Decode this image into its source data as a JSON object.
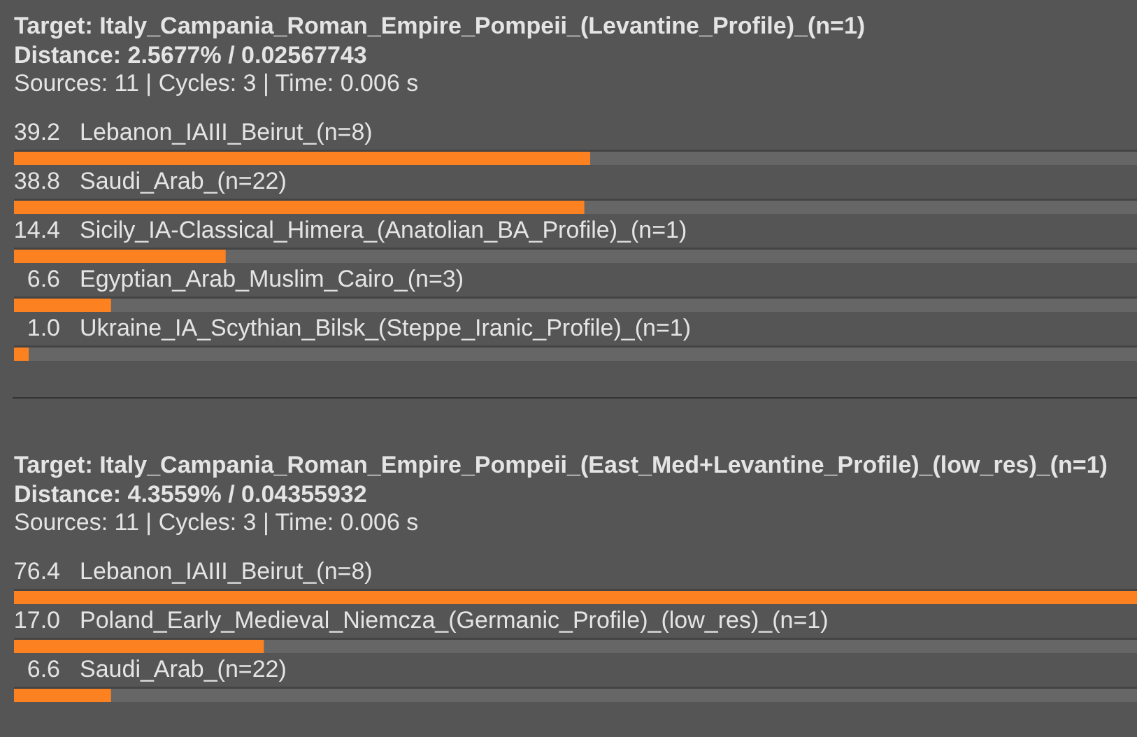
{
  "chart_data": [
    {
      "type": "bar",
      "orientation": "horizontal",
      "title": "Target: Italy_Campania_Roman_Empire_Pompeii_(Levantine_Profile)_(n=1)",
      "subtitle": "Distance: 2.5677% / 0.02567743",
      "annotations": [
        "Sources: 11 | Cycles: 3 | Time: 0.006 s"
      ],
      "categories": [
        "Lebanon_IAIII_Beirut_(n=8)",
        "Saudi_Arab_(n=22)",
        "Sicily_IA-Classical_Himera_(Anatolian_BA_Profile)_(n=1)",
        "Egyptian_Arab_Muslim_Cairo_(n=3)",
        "Ukraine_IA_Scythian_Bilsk_(Steppe_Iranic_Profile)_(n=1)"
      ],
      "values": [
        39.2,
        38.8,
        14.4,
        6.6,
        1.0
      ],
      "value_labels": [
        "39.2",
        "38.8",
        "14.4",
        "6.6",
        "1.0"
      ],
      "color": "#fc8221"
    },
    {
      "type": "bar",
      "orientation": "horizontal",
      "title": "Target: Italy_Campania_Roman_Empire_Pompeii_(East_Med+Levantine_Profile)_(low_res)_(n=1)",
      "subtitle": "Distance: 4.3559% / 0.04355932",
      "annotations": [
        "Sources: 11 | Cycles: 3 | Time: 0.006 s"
      ],
      "categories": [
        "Lebanon_IAIII_Beirut_(n=8)",
        "Poland_Early_Medieval_Niemcza_(Germanic_Profile)_(low_res)_(n=1)",
        "Saudi_Arab_(n=22)"
      ],
      "values": [
        76.4,
        17.0,
        6.6
      ],
      "value_labels": [
        "76.4",
        "17.0",
        "6.6"
      ],
      "color": "#fc8221"
    }
  ]
}
